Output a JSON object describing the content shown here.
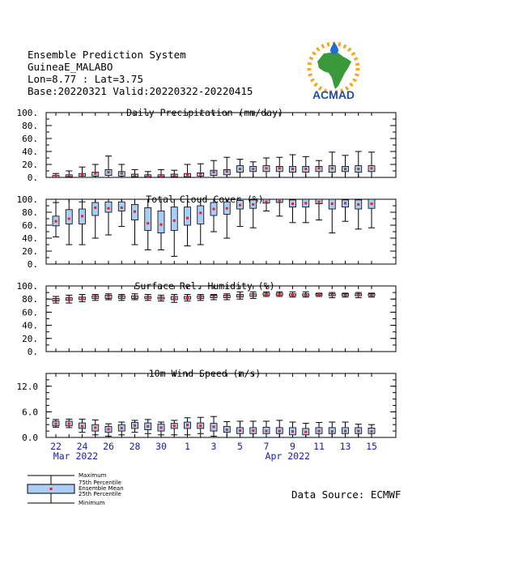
{
  "header": {
    "line1": "Ensemble Prediction System",
    "line2": "GuineaE_MALABO",
    "line3": "Lon=8.77 : Lat=3.75",
    "line4": "Base:20220321 Valid:20220322-20220415"
  },
  "logo": {
    "text": "ACMAD",
    "colors": {
      "africa": "#3a9a3a",
      "sun": "#f5a623",
      "drop": "#1e6fd0",
      "text": "#1e4fb0"
    }
  },
  "footer": {
    "source": "Data Source: ECMWF"
  },
  "legend": {
    "maximum": "Maximum",
    "p75": "75th Percentile",
    "mean": "Ensemble Mean",
    "p25": "25th Percentile",
    "minimum": "Minimum"
  },
  "colors": {
    "box": "#a9cdf5",
    "mean": "#e8202a",
    "axis_labels": "#1a1ab4",
    "frame": "#000000"
  },
  "chart_data": [
    {
      "type": "box",
      "title": "Daily Precipitation (mm/day)",
      "ylim": [
        0,
        100
      ],
      "yticks": [
        "0.",
        "20.",
        "40.",
        "60.",
        "80.",
        "100."
      ],
      "minor_step": 10,
      "x": [
        "2022-03-22",
        "2022-03-23",
        "2022-03-24",
        "2022-03-25",
        "2022-03-26",
        "2022-03-27",
        "2022-03-28",
        "2022-03-29",
        "2022-03-30",
        "2022-03-31",
        "2022-04-01",
        "2022-04-02",
        "2022-04-03",
        "2022-04-04",
        "2022-04-05",
        "2022-04-06",
        "2022-04-07",
        "2022-04-08",
        "2022-04-09",
        "2022-04-10",
        "2022-04-11",
        "2022-04-12",
        "2022-04-13",
        "2022-04-14",
        "2022-04-15"
      ],
      "min": [
        0,
        0,
        0,
        0,
        0,
        0,
        0,
        0,
        0,
        0,
        0,
        0,
        0,
        0,
        0,
        0,
        0,
        0,
        0,
        0,
        0,
        0,
        0,
        0,
        0
      ],
      "p25": [
        0,
        1,
        2,
        2,
        3,
        2,
        1,
        1,
        1,
        1,
        1,
        2,
        3,
        4,
        8,
        9,
        9,
        9,
        8,
        8,
        9,
        8,
        9,
        8,
        9
      ],
      "mean": [
        2,
        3,
        4,
        6,
        8,
        6,
        3,
        2,
        2,
        3,
        4,
        5,
        8,
        9,
        13,
        13,
        14,
        14,
        13,
        13,
        14,
        14,
        13,
        13,
        14
      ],
      "p75": [
        3,
        4,
        6,
        8,
        12,
        9,
        5,
        4,
        4,
        5,
        6,
        7,
        11,
        12,
        18,
        17,
        18,
        17,
        17,
        17,
        17,
        18,
        17,
        18,
        18
      ],
      "max": [
        6,
        10,
        16,
        20,
        33,
        20,
        12,
        9,
        12,
        11,
        20,
        21,
        26,
        31,
        28,
        24,
        30,
        31,
        35,
        32,
        26,
        39,
        34,
        40,
        39
      ]
    },
    {
      "type": "box",
      "title": "Total Cloud Cover (%)",
      "ylim": [
        0,
        100
      ],
      "yticks": [
        "0.",
        "20.",
        "40.",
        "60.",
        "80.",
        "100."
      ],
      "minor_step": 10,
      "x_ref": 0,
      "min": [
        42,
        30,
        30,
        40,
        45,
        58,
        30,
        22,
        22,
        12,
        28,
        30,
        50,
        40,
        58,
        56,
        82,
        74,
        64,
        64,
        68,
        48,
        66,
        54,
        56
      ],
      "p25": [
        59,
        62,
        62,
        75,
        80,
        82,
        68,
        52,
        48,
        52,
        60,
        62,
        75,
        77,
        85,
        86,
        94,
        95,
        88,
        88,
        93,
        85,
        88,
        85,
        86
      ],
      "mean": [
        66,
        70,
        74,
        87,
        86,
        87,
        81,
        63,
        61,
        67,
        71,
        79,
        85,
        86,
        91,
        92,
        96,
        97,
        93,
        94,
        96,
        93,
        94,
        92,
        93
      ],
      "p75": [
        74,
        84,
        85,
        95,
        96,
        96,
        92,
        87,
        82,
        88,
        88,
        90,
        95,
        96,
        98,
        99,
        100,
        100,
        99,
        100,
        100,
        100,
        99,
        99,
        100
      ],
      "max": [
        95,
        100,
        96,
        100,
        100,
        100,
        100,
        100,
        100,
        100,
        100,
        100,
        100,
        100,
        100,
        100,
        100,
        100,
        100,
        100,
        100,
        100,
        100,
        100,
        100
      ]
    },
    {
      "type": "box",
      "title": "Surface Rel. Humidity (%)",
      "ylim": [
        0,
        100
      ],
      "yticks": [
        "0.",
        "20.",
        "40.",
        "60.",
        "80.",
        "100."
      ],
      "minor_step": 10,
      "x_ref": 0,
      "min": [
        74,
        74,
        76,
        78,
        79,
        78,
        79,
        78,
        77,
        75,
        77,
        78,
        79,
        79,
        80,
        81,
        84,
        84,
        83,
        83,
        84,
        82,
        83,
        82,
        83
      ],
      "p25": [
        77,
        78,
        79,
        81,
        81,
        81,
        81,
        81,
        80,
        79,
        80,
        81,
        82,
        82,
        83,
        84,
        86,
        86,
        85,
        85,
        86,
        85,
        85,
        85,
        85
      ],
      "mean": [
        79,
        80,
        81,
        83,
        84,
        83,
        83,
        82,
        81,
        81,
        82,
        83,
        84,
        84,
        85,
        86,
        87,
        87,
        87,
        86,
        87,
        86,
        86,
        86,
        86
      ],
      "p75": [
        81,
        82,
        83,
        85,
        86,
        85,
        85,
        84,
        83,
        84,
        84,
        85,
        86,
        86,
        87,
        88,
        89,
        89,
        88,
        88,
        88,
        88,
        88,
        88,
        88
      ],
      "max": [
        84,
        86,
        87,
        87,
        88,
        87,
        88,
        87,
        86,
        87,
        87,
        87,
        87,
        88,
        91,
        91,
        91,
        91,
        91,
        91,
        89,
        90,
        89,
        90,
        89
      ]
    },
    {
      "type": "box",
      "title": "10m Wind Speed (m/s)",
      "ylim": [
        0,
        15
      ],
      "yticks": [
        "0.0",
        "6.0",
        "12.0"
      ],
      "minor_step": 1.5,
      "x_ref": 0,
      "min": [
        2.4,
        2.3,
        1.2,
        0.6,
        0.3,
        0.6,
        1.2,
        0.9,
        0.6,
        0.6,
        0.6,
        0.9,
        0.3,
        0,
        0,
        0,
        0,
        0,
        0,
        0,
        0,
        0,
        0,
        0,
        0
      ],
      "p25": [
        2.7,
        2.7,
        2.1,
        1.5,
        1.2,
        1.5,
        2.1,
        1.8,
        1.5,
        2.1,
        2.1,
        2.1,
        1.5,
        1.2,
        0.9,
        0.9,
        0.9,
        0.9,
        0.6,
        0.6,
        0.9,
        0.9,
        0.9,
        0.9,
        0.9
      ],
      "mean": [
        3.2,
        3.2,
        2.6,
        2.3,
        1.9,
        2.2,
        2.8,
        2.6,
        2.3,
        2.7,
        2.9,
        2.7,
        2.5,
        1.8,
        1.6,
        1.6,
        1.5,
        1.5,
        1.4,
        1.3,
        1.5,
        1.4,
        1.5,
        1.5,
        1.4
      ],
      "p75": [
        3.8,
        3.8,
        3.4,
        3.0,
        2.6,
        3.0,
        3.5,
        3.4,
        3.1,
        3.3,
        3.6,
        3.4,
        3.3,
        2.6,
        2.3,
        2.3,
        2.4,
        2.3,
        2.3,
        2.1,
        2.3,
        2.3,
        2.3,
        2.3,
        2.2
      ],
      "max": [
        4.2,
        4.3,
        4.3,
        4.1,
        3.2,
        3.6,
        4.0,
        4.2,
        3.6,
        4.0,
        4.6,
        4.7,
        4.9,
        3.7,
        3.8,
        3.8,
        3.8,
        4.0,
        3.6,
        3.3,
        3.5,
        3.6,
        3.6,
        3.1,
        3.0
      ]
    }
  ],
  "x_axis": {
    "tick_labels": [
      "22",
      "24",
      "26",
      "28",
      "30",
      "1",
      "3",
      "5",
      "7",
      "9",
      "11",
      "13",
      "15"
    ],
    "month_labels": [
      "Mar 2022",
      "Apr 2022"
    ]
  }
}
